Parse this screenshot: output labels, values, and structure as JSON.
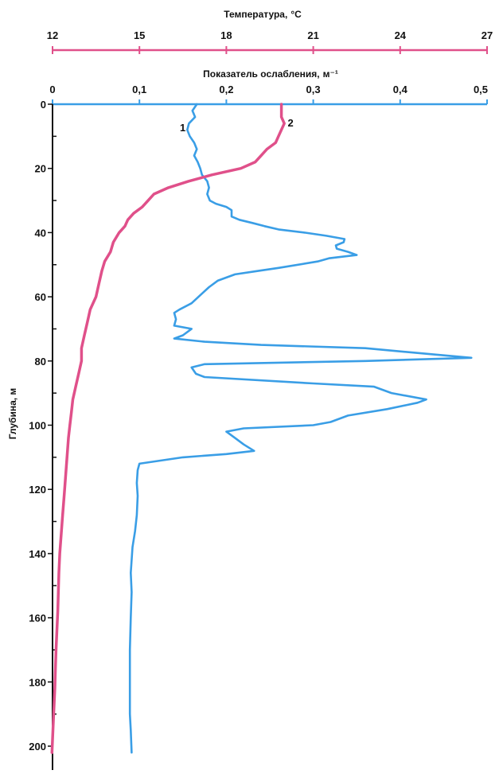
{
  "chart_data": {
    "type": "line",
    "orientation": "depth-profile",
    "top_axis_title": "Температура,",
    "top_axis_unit": "°C",
    "top_axis_ticks": [
      "12",
      "15",
      "18",
      "21",
      "24",
      "27"
    ],
    "top_axis_range": [
      12,
      27
    ],
    "mid_axis_title": "Показатель ослабления,",
    "mid_axis_unit": "м⁻¹",
    "mid_axis_ticks": [
      "0",
      "0,1",
      "0,2",
      "0,3",
      "0,4",
      "0,5"
    ],
    "mid_axis_range": [
      0,
      0.5
    ],
    "y_axis_title": "Глубина, м",
    "y_axis_ticks": [
      "0",
      "20",
      "40",
      "60",
      "80",
      "100",
      "120",
      "140",
      "160",
      "180",
      "200"
    ],
    "y_axis_range": [
      0,
      208
    ],
    "y_axis_inverted": true,
    "grid": false,
    "colors": {
      "temperature": "#e0508a",
      "attenuation": "#3a9ee6",
      "axis": "#111111"
    },
    "series": [
      {
        "name": "1",
        "axis": "attenuation",
        "points": [
          [
            0.166,
            0
          ],
          [
            0.161,
            2
          ],
          [
            0.164,
            4
          ],
          [
            0.157,
            6
          ],
          [
            0.155,
            8
          ],
          [
            0.158,
            10
          ],
          [
            0.163,
            12
          ],
          [
            0.166,
            14
          ],
          [
            0.163,
            16
          ],
          [
            0.167,
            18
          ],
          [
            0.17,
            20
          ],
          [
            0.172,
            22
          ],
          [
            0.178,
            24
          ],
          [
            0.18,
            26
          ],
          [
            0.178,
            28
          ],
          [
            0.181,
            30
          ],
          [
            0.188,
            31
          ],
          [
            0.2,
            32
          ],
          [
            0.206,
            33
          ],
          [
            0.206,
            35
          ],
          [
            0.215,
            36
          ],
          [
            0.23,
            37
          ],
          [
            0.244,
            38
          ],
          [
            0.26,
            39
          ],
          [
            0.29,
            40
          ],
          [
            0.315,
            41
          ],
          [
            0.336,
            42
          ],
          [
            0.335,
            43
          ],
          [
            0.326,
            44
          ],
          [
            0.327,
            45
          ],
          [
            0.34,
            46
          ],
          [
            0.35,
            47
          ],
          [
            0.318,
            48
          ],
          [
            0.305,
            49
          ],
          [
            0.26,
            51
          ],
          [
            0.235,
            52
          ],
          [
            0.21,
            53
          ],
          [
            0.19,
            55
          ],
          [
            0.18,
            57
          ],
          [
            0.172,
            59
          ],
          [
            0.16,
            62
          ],
          [
            0.146,
            64
          ],
          [
            0.14,
            65
          ],
          [
            0.142,
            67
          ],
          [
            0.14,
            69
          ],
          [
            0.16,
            70
          ],
          [
            0.15,
            72
          ],
          [
            0.14,
            73
          ],
          [
            0.175,
            74
          ],
          [
            0.24,
            75
          ],
          [
            0.36,
            76
          ],
          [
            0.44,
            78
          ],
          [
            0.482,
            79
          ],
          [
            0.36,
            80
          ],
          [
            0.175,
            81
          ],
          [
            0.16,
            82
          ],
          [
            0.165,
            84
          ],
          [
            0.175,
            85
          ],
          [
            0.3,
            87
          ],
          [
            0.37,
            88
          ],
          [
            0.39,
            90
          ],
          [
            0.43,
            92
          ],
          [
            0.42,
            93
          ],
          [
            0.385,
            95
          ],
          [
            0.34,
            97
          ],
          [
            0.32,
            99
          ],
          [
            0.3,
            100
          ],
          [
            0.22,
            101
          ],
          [
            0.2,
            102
          ],
          [
            0.21,
            104
          ],
          [
            0.22,
            106
          ],
          [
            0.232,
            108
          ],
          [
            0.2,
            109
          ],
          [
            0.15,
            110
          ],
          [
            0.1,
            112
          ],
          [
            0.098,
            114
          ],
          [
            0.097,
            118
          ],
          [
            0.098,
            122
          ],
          [
            0.097,
            128
          ],
          [
            0.095,
            133
          ],
          [
            0.092,
            138
          ],
          [
            0.091,
            142
          ],
          [
            0.09,
            146
          ],
          [
            0.091,
            152
          ],
          [
            0.09,
            160
          ],
          [
            0.089,
            170
          ],
          [
            0.089,
            180
          ],
          [
            0.089,
            190
          ],
          [
            0.09,
            195
          ],
          [
            0.091,
            202
          ]
        ]
      },
      {
        "name": "2",
        "axis": "temperature",
        "points": [
          [
            19.9,
            0
          ],
          [
            19.9,
            4
          ],
          [
            20.0,
            6
          ],
          [
            19.8,
            10
          ],
          [
            19.7,
            12
          ],
          [
            19.4,
            14
          ],
          [
            19.2,
            16
          ],
          [
            19.0,
            18
          ],
          [
            18.5,
            20
          ],
          [
            17.5,
            22
          ],
          [
            16.7,
            24
          ],
          [
            16.0,
            26
          ],
          [
            15.5,
            28
          ],
          [
            15.3,
            30
          ],
          [
            15.1,
            32
          ],
          [
            14.8,
            34
          ],
          [
            14.6,
            36
          ],
          [
            14.5,
            38
          ],
          [
            14.3,
            40
          ],
          [
            14.1,
            43
          ],
          [
            14.0,
            46
          ],
          [
            13.8,
            49
          ],
          [
            13.7,
            52
          ],
          [
            13.6,
            56
          ],
          [
            13.5,
            60
          ],
          [
            13.3,
            64
          ],
          [
            13.2,
            68
          ],
          [
            13.1,
            72
          ],
          [
            13.0,
            76
          ],
          [
            13.0,
            80
          ],
          [
            12.9,
            84
          ],
          [
            12.8,
            88
          ],
          [
            12.7,
            92
          ],
          [
            12.65,
            96
          ],
          [
            12.6,
            100
          ],
          [
            12.55,
            104
          ],
          [
            12.5,
            110
          ],
          [
            12.45,
            116
          ],
          [
            12.4,
            122
          ],
          [
            12.35,
            128
          ],
          [
            12.3,
            134
          ],
          [
            12.25,
            140
          ],
          [
            12.22,
            146
          ],
          [
            12.2,
            152
          ],
          [
            12.18,
            158
          ],
          [
            12.15,
            164
          ],
          [
            12.12,
            170
          ],
          [
            12.1,
            176
          ],
          [
            12.08,
            182
          ],
          [
            12.05,
            188
          ],
          [
            12.02,
            194
          ],
          [
            12.0,
            198
          ],
          [
            11.98,
            202
          ]
        ]
      }
    ]
  }
}
